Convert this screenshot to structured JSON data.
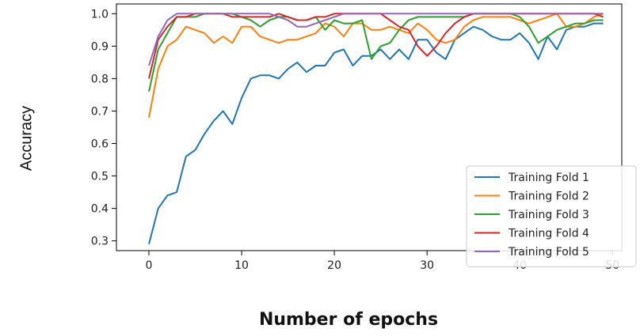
{
  "chart_data": {
    "type": "line",
    "xlabel": "Number of epochs",
    "ylabel": "Accuracy",
    "xlim": [
      -3.5,
      51
    ],
    "ylim": [
      0.27,
      1.03
    ],
    "xticks": [
      0,
      10,
      20,
      30,
      40,
      50
    ],
    "yticks": [
      0.3,
      0.4,
      0.5,
      0.6,
      0.7,
      0.8,
      0.9,
      1.0
    ],
    "ytick_labels": [
      "0.3",
      "0.4",
      "0.5",
      "0.6",
      "0.7",
      "0.8",
      "0.9",
      "1.0"
    ],
    "grid": false,
    "legend_position": "lower-right",
    "x": [
      0,
      1,
      2,
      3,
      4,
      5,
      6,
      7,
      8,
      9,
      10,
      11,
      12,
      13,
      14,
      15,
      16,
      17,
      18,
      19,
      20,
      21,
      22,
      23,
      24,
      25,
      26,
      27,
      28,
      29,
      30,
      31,
      32,
      33,
      34,
      35,
      36,
      37,
      38,
      39,
      40,
      41,
      42,
      43,
      44,
      45,
      46,
      47,
      48,
      49
    ],
    "series": [
      {
        "name": "Training Fold 1",
        "color": "#1f77b4",
        "values": [
          0.29,
          0.4,
          0.44,
          0.45,
          0.56,
          0.58,
          0.63,
          0.67,
          0.7,
          0.66,
          0.74,
          0.8,
          0.81,
          0.81,
          0.8,
          0.83,
          0.85,
          0.82,
          0.84,
          0.84,
          0.88,
          0.89,
          0.84,
          0.87,
          0.87,
          0.89,
          0.86,
          0.89,
          0.86,
          0.92,
          0.92,
          0.88,
          0.86,
          0.92,
          0.94,
          0.96,
          0.95,
          0.93,
          0.92,
          0.92,
          0.94,
          0.91,
          0.86,
          0.93,
          0.89,
          0.95,
          0.96,
          0.96,
          0.97,
          0.97
        ]
      },
      {
        "name": "Training Fold 2",
        "color": "#ff7f0e",
        "values": [
          0.68,
          0.83,
          0.9,
          0.92,
          0.96,
          0.95,
          0.94,
          0.91,
          0.93,
          0.91,
          0.96,
          0.96,
          0.93,
          0.92,
          0.91,
          0.92,
          0.92,
          0.93,
          0.94,
          0.97,
          0.96,
          0.93,
          0.97,
          0.97,
          0.95,
          0.95,
          0.96,
          0.95,
          0.94,
          0.97,
          0.95,
          0.92,
          0.91,
          0.92,
          0.96,
          0.98,
          0.99,
          0.99,
          0.99,
          0.99,
          0.98,
          0.97,
          0.98,
          0.99,
          1.0,
          0.96,
          0.96,
          0.97,
          0.99,
          1.0
        ]
      },
      {
        "name": "Training Fold 3",
        "color": "#2ca02c",
        "values": [
          0.76,
          0.89,
          0.94,
          0.99,
          0.99,
          0.99,
          1.0,
          1.0,
          1.0,
          1.0,
          0.99,
          0.98,
          0.96,
          0.98,
          0.99,
          0.99,
          0.98,
          0.98,
          0.99,
          0.95,
          0.98,
          0.97,
          0.97,
          0.98,
          0.86,
          0.9,
          0.91,
          0.95,
          0.98,
          0.99,
          0.99,
          0.99,
          0.99,
          0.99,
          0.99,
          1.0,
          1.0,
          1.0,
          1.0,
          1.0,
          0.99,
          0.96,
          0.91,
          0.93,
          0.95,
          0.96,
          0.97,
          0.97,
          0.98,
          0.98
        ]
      },
      {
        "name": "Training Fold 4",
        "color": "#d62728",
        "values": [
          0.8,
          0.92,
          0.96,
          0.99,
          0.99,
          1.0,
          1.0,
          1.0,
          1.0,
          0.99,
          0.99,
          0.99,
          0.99,
          0.99,
          1.0,
          0.99,
          0.98,
          0.98,
          0.99,
          0.99,
          1.0,
          1.0,
          1.0,
          1.0,
          1.0,
          1.0,
          0.98,
          0.96,
          0.95,
          0.9,
          0.87,
          0.9,
          0.94,
          0.97,
          0.99,
          1.0,
          1.0,
          1.0,
          1.0,
          1.0,
          1.0,
          1.0,
          1.0,
          1.0,
          1.0,
          1.0,
          1.0,
          1.0,
          1.0,
          0.99
        ]
      },
      {
        "name": "Training Fold 5",
        "color": "#9467bd",
        "values": [
          0.84,
          0.93,
          0.98,
          1.0,
          1.0,
          1.0,
          1.0,
          1.0,
          1.0,
          1.0,
          1.0,
          1.0,
          1.0,
          1.0,
          0.99,
          0.98,
          0.96,
          0.96,
          0.97,
          0.98,
          0.99,
          1.0,
          1.0,
          1.0,
          1.0,
          1.0,
          1.0,
          1.0,
          1.0,
          1.0,
          1.0,
          1.0,
          1.0,
          1.0,
          1.0,
          1.0,
          1.0,
          1.0,
          1.0,
          1.0,
          1.0,
          1.0,
          1.0,
          1.0,
          1.0,
          1.0,
          1.0,
          1.0,
          1.0,
          1.0
        ]
      }
    ]
  }
}
